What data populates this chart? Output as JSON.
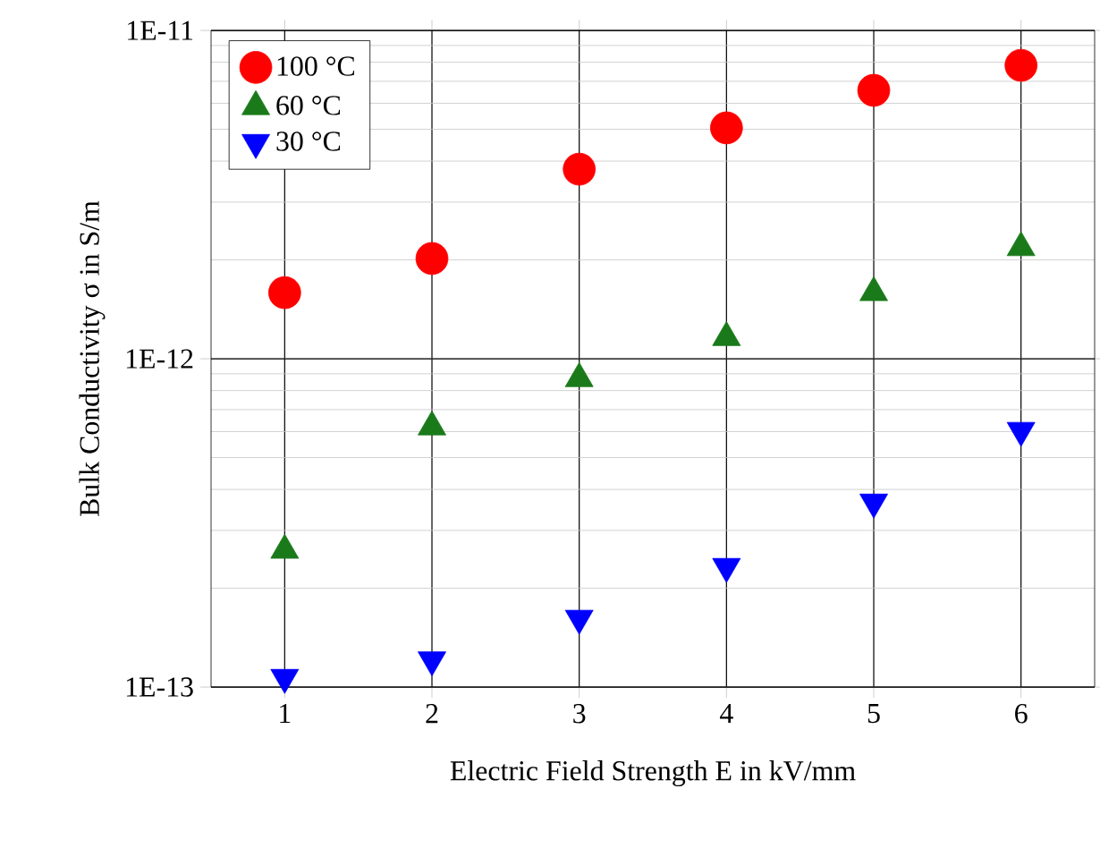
{
  "chart_data": {
    "type": "scatter",
    "xlabel": "Electric Field Strength E in kV/mm",
    "ylabel": "Bulk Conductivity σ in S/m",
    "x": [
      1,
      2,
      3,
      4,
      5,
      6
    ],
    "series": [
      {
        "name": "100 °C",
        "color": "#ff0000",
        "marker": "circle",
        "values": [
          1.59e-12,
          2.02e-12,
          3.78e-12,
          5.05e-12,
          6.57e-12,
          7.83e-12
        ]
      },
      {
        "name": "60 °C",
        "color": "#1a7a1a",
        "marker": "triangle",
        "values": [
          2.61e-13,
          6.2e-13,
          8.7e-13,
          1.16e-12,
          1.59e-12,
          2.18e-12
        ]
      },
      {
        "name": "30 °C",
        "color": "#0000ff",
        "marker": "triangle-down",
        "values": [
          1.07e-13,
          1.21e-13,
          1.62e-13,
          2.33e-13,
          3.66e-13,
          6.05e-13
        ]
      }
    ],
    "xlim": [
      0.5,
      6.5
    ],
    "xticks": [
      1,
      2,
      3,
      4,
      5,
      6
    ],
    "ylim": [
      1e-13,
      1e-11
    ],
    "yticks": [
      {
        "value": 1e-13,
        "label": "1E-13"
      },
      {
        "value": 1e-12,
        "label": "1E-12"
      },
      {
        "value": 1e-11,
        "label": "1E-11"
      }
    ],
    "log": "y",
    "grid": true,
    "legend": "top left"
  }
}
